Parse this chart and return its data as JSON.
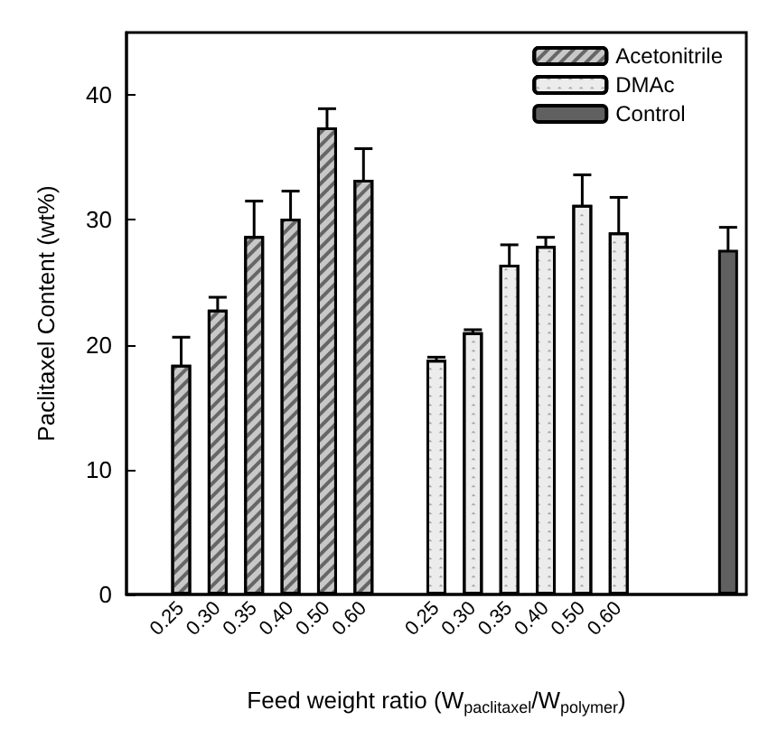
{
  "chart_data": {
    "type": "bar",
    "xlabel": "Feed weight ratio (W$_{paclitaxel}$/W$_{polymer}$)",
    "ylabel": "Paclitaxel Content (wt%)",
    "categories": [
      null,
      "0.25",
      "0.30",
      "0.35",
      "0.40",
      "0.50",
      "0.60",
      null,
      "0.25",
      "0.30",
      "0.35",
      "0.40",
      "0.50",
      "0.60",
      null,
      null,
      null
    ],
    "series": [
      {
        "name": "Acetonitrile",
        "color": "#c8c8c8",
        "values": [
          null,
          18.4,
          22.8,
          28.7,
          30.1,
          37.4,
          33.2,
          null,
          null,
          null,
          null,
          null,
          null,
          null,
          null,
          null,
          null
        ],
        "errors": [
          null,
          2.2,
          1.0,
          2.8,
          2.2,
          1.5,
          2.5,
          null,
          null,
          null,
          null,
          null,
          null,
          null,
          null,
          null,
          null
        ]
      },
      {
        "name": "DMAc",
        "color": "#ececec",
        "values": [
          null,
          null,
          null,
          null,
          null,
          null,
          null,
          null,
          18.8,
          21.0,
          26.4,
          27.9,
          31.2,
          29.0,
          null,
          null,
          null
        ],
        "errors": [
          null,
          null,
          null,
          null,
          null,
          null,
          null,
          null,
          0.2,
          0.2,
          1.6,
          0.7,
          2.4,
          2.8,
          null,
          null,
          null
        ]
      },
      {
        "name": "Control",
        "color": "#606060",
        "values": [
          null,
          null,
          null,
          null,
          null,
          null,
          null,
          null,
          null,
          null,
          null,
          null,
          null,
          null,
          null,
          null,
          27.6
        ],
        "errors": [
          null,
          null,
          null,
          null,
          null,
          null,
          null,
          null,
          null,
          null,
          null,
          null,
          null,
          null,
          null,
          null,
          1.8
        ]
      }
    ],
    "ylim": [
      0,
      45
    ],
    "yticks": [
      0,
      10,
      20,
      30,
      40
    ],
    "grid": false,
    "legend": "top right"
  }
}
